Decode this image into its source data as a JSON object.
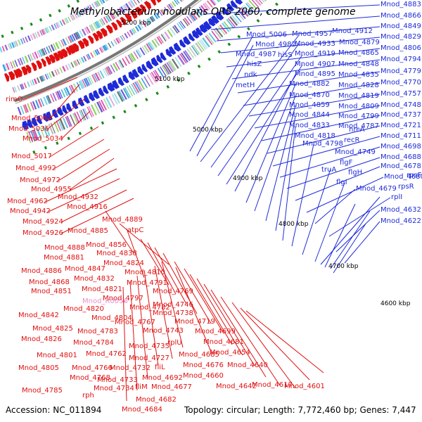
{
  "title": "Methylobacterium nodulans ORS 2060, complete genome",
  "footer": {
    "accession": "Accession: NC_011894",
    "summary": "Topology: circular; Length: 7,772,460 bp; Genes: 7,447"
  },
  "colors": {
    "forward": "#1e2bd8",
    "reverse": "#e01010",
    "highlight": "#e98fc8",
    "backbone": "#777777",
    "tick": "#1a8a1a"
  },
  "kbp_marks": [
    "5200 kbp",
    "5100 kbp",
    "5000 kbp",
    "4900 kbp",
    "4800 kbp",
    "4700 kbp",
    "4600 kbp"
  ],
  "blue_labels": [
    "Mnod_4883",
    "Mnod_4866",
    "Mnod_4849",
    "Mnod_4829",
    "Mnod_4806",
    "Mnod_4794",
    "Mnod_4779",
    "Mnod_4770",
    "Mnod_4757",
    "Mnod_4748",
    "Mnod_4737",
    "Mnod_4721",
    "Mnod_4711",
    "Mnod_4698",
    "Mnod_4688",
    "Mnod_4678",
    "Mnod_4680",
    "rpsF",
    "Mnod_4679",
    "rpsR",
    "rplI",
    "Mnod_4632",
    "Mnod_4622",
    "Mnod_4912",
    "Mnod_4879",
    "Mnod_4865",
    "Mnod_4848",
    "Mnod_4835",
    "Mnod_4828",
    "Mnod_4819",
    "Mnod_4809",
    "Mnod_4799",
    "Mnod_4787",
    "Mnod_5006",
    "Mnod_4957",
    "Mnod_4933",
    "Mnod_4982",
    "Mnod_4919",
    "Mnod_4987",
    "hisS",
    "hisZ",
    "Mnod_4907",
    "ndk",
    "Mnod_4895",
    "metH",
    "Mnod_4882",
    "Mnod_4870",
    "Mnod_4859",
    "Mnod_4844",
    "Mnod_4833",
    "Mnod_4818",
    "Mnod_4798",
    "hrcA",
    "recR",
    "Mnod_4749",
    "flgF",
    "truA",
    "flgH",
    "flgI"
  ],
  "red_labels": [
    "rimO",
    "Mnod_5082",
    "Mnod_5036",
    "Mnod_5034",
    "Mnod_5017",
    "Mnod_4992",
    "Mnod_4972",
    "Mnod_4955",
    "Mnod_4962",
    "Mnod_4932",
    "Mnod_4942",
    "Mnod_4916",
    "Mnod_4924",
    "Mnod_4889",
    "Mnod_4926",
    "Mnod_4885",
    "atpC",
    "Mnod_4888",
    "Mnod_4856",
    "Mnod_4881",
    "Mnod_4838",
    "Mnod_4824",
    "Mnod_4886",
    "Mnod_4847",
    "Mnod_4810",
    "Mnod_4868",
    "Mnod_4832",
    "Mnod_4791",
    "Mnod_4851",
    "Mnod_4821",
    "Mnod_4769",
    "Mnod_4797",
    "Mnod_4820",
    "Mnod_4782",
    "Mnod_4746",
    "Mnod_4842",
    "Mnod_4804",
    "Mnod_4738",
    "Mnod_4767",
    "Mnod_4719",
    "Mnod_4825",
    "Mnod_4783",
    "Mnod_4743",
    "Mnod_4699",
    "Mnod_4826",
    "Mnod_4784",
    "rplU",
    "Mnod_4681",
    "Mnod_4735",
    "Mnod_4801",
    "Mnod_4762",
    "Mnod_4727",
    "Mnod_4685",
    "Mnod_4654",
    "Mnod_4805",
    "Mnod_4766",
    "Mnod_4732",
    "fliL",
    "Mnod_4676",
    "Mnod_4640",
    "Mnod_4768",
    "Mnod_4733",
    "Mnod_4692",
    "Mnod_4660",
    "Mnod_4785",
    "rph",
    "Mnod_4734",
    "fliM",
    "Mnod_4677",
    "Mnod_4642",
    "Mnod_4617",
    "Mnod_4601",
    "Mnod_4682",
    "Mnod_4684"
  ],
  "pink_labels": [
    "Mnod_R0056"
  ]
}
